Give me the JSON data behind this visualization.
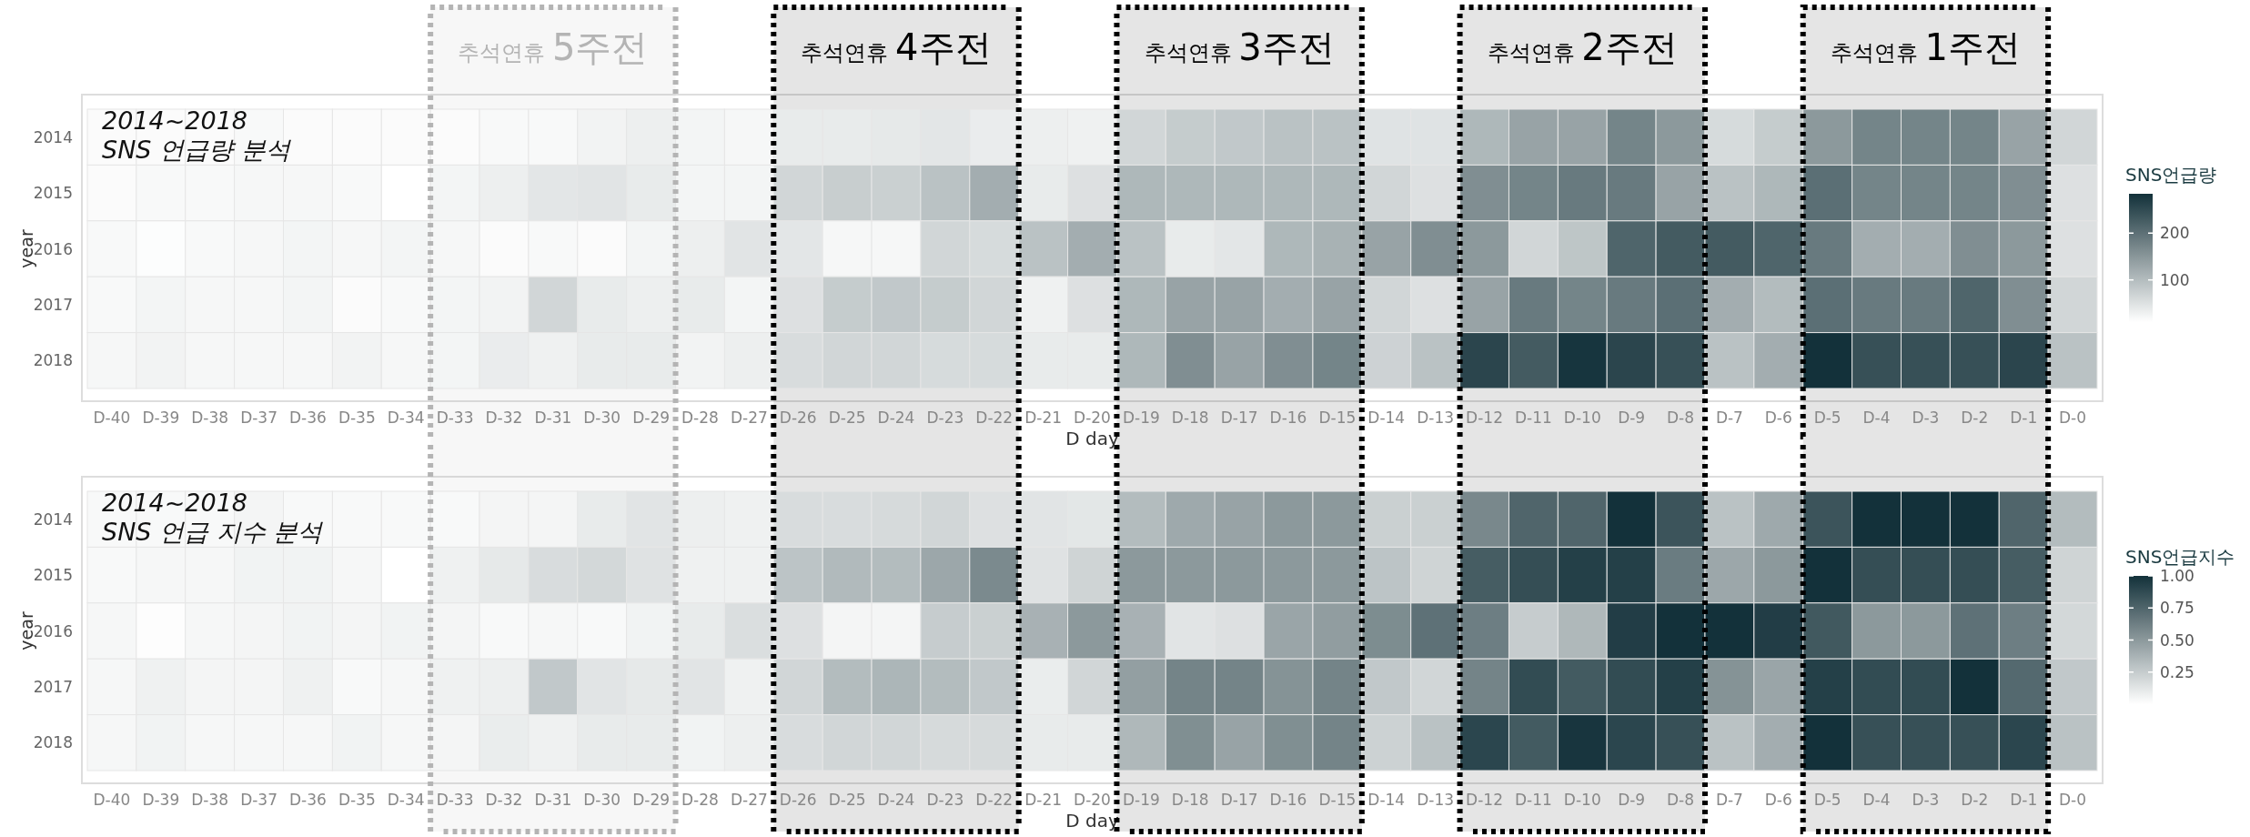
{
  "chart_data": [
    {
      "type": "heatmap",
      "xlabel": "D day",
      "ylabel": "year",
      "clabel": "SNS언급량",
      "annotations": [
        "2014~2018\nSNS 언급량 분석"
      ],
      "categories": [
        "D-40",
        "D-39",
        "D-38",
        "D-37",
        "D-36",
        "D-35",
        "D-34",
        "D-33",
        "D-32",
        "D-31",
        "D-30",
        "D-29",
        "D-28",
        "D-27",
        "D-26",
        "D-25",
        "D-24",
        "D-23",
        "D-22",
        "D-21",
        "D-20",
        "D-19",
        "D-18",
        "D-17",
        "D-16",
        "D-15",
        "D-14",
        "D-13",
        "D-12",
        "D-11",
        "D-10",
        "D-9",
        "D-8",
        "D-7",
        "D-6",
        "D-5",
        "D-4",
        "D-3",
        "D-2",
        "D-1",
        "D-0"
      ],
      "y_categories": [
        "2014",
        "2015",
        "2016",
        "2017",
        "2018"
      ],
      "cells": [
        [
          15,
          15,
          15,
          18,
          15,
          15,
          15,
          15,
          18,
          18,
          26,
          32,
          24,
          21,
          37,
          37,
          40,
          43,
          35,
          32,
          29,
          65,
          79,
          84,
          92,
          92,
          48,
          48,
          106,
          133,
          133,
          174,
          147,
          59,
          79,
          147,
          174,
          174,
          174,
          133,
          65
        ],
        [
          15,
          18,
          18,
          21,
          21,
          18,
          10,
          24,
          32,
          43,
          46,
          37,
          24,
          24,
          65,
          76,
          73,
          92,
          120,
          37,
          51,
          106,
          106,
          106,
          106,
          106,
          65,
          51,
          161,
          174,
          188,
          188,
          133,
          92,
          106,
          202,
          174,
          174,
          174,
          161,
          51
        ],
        [
          18,
          13,
          18,
          21,
          24,
          21,
          24,
          21,
          15,
          18,
          15,
          24,
          32,
          46,
          43,
          21,
          21,
          65,
          59,
          92,
          120,
          92,
          37,
          43,
          106,
          114,
          133,
          161,
          147,
          65,
          87,
          216,
          229,
          229,
          216,
          188,
          120,
          120,
          161,
          147,
          51
        ],
        [
          18,
          24,
          21,
          21,
          24,
          15,
          18,
          24,
          26,
          65,
          37,
          32,
          37,
          24,
          51,
          79,
          84,
          79,
          65,
          29,
          51,
          106,
          133,
          133,
          120,
          133,
          65,
          51,
          133,
          188,
          174,
          188,
          202,
          120,
          100,
          202,
          188,
          188,
          216,
          161,
          65
        ],
        [
          21,
          26,
          21,
          21,
          21,
          26,
          21,
          24,
          35,
          29,
          37,
          37,
          26,
          32,
          57,
          65,
          65,
          59,
          59,
          37,
          37,
          106,
          161,
          133,
          161,
          174,
          70,
          92,
          257,
          229,
          279,
          257,
          243,
          92,
          120,
          284,
          243,
          243,
          243,
          257,
          92
        ]
      ],
      "clim": [
        10,
        284
      ],
      "cticks": [
        100,
        200
      ],
      "bands": [
        {
          "axis": "x",
          "from": "D-33",
          "to": "D-29",
          "label": "추석연휴 5주전",
          "color": "#b4b4b4"
        },
        {
          "axis": "x",
          "from": "D-26",
          "to": "D-22",
          "label": "추석연휴 4주전",
          "color": "#000000"
        },
        {
          "axis": "x",
          "from": "D-19",
          "to": "D-15",
          "label": "추석연휴 3주전",
          "color": "#000000"
        },
        {
          "axis": "x",
          "from": "D-12",
          "to": "D-8",
          "label": "추석연휴 2주전",
          "color": "#000000"
        },
        {
          "axis": "x",
          "from": "D-5",
          "to": "D-1",
          "label": "추석연휴 1주전",
          "color": "#000000"
        }
      ]
    },
    {
      "type": "heatmap",
      "xlabel": "D day",
      "ylabel": "year",
      "clabel": "SNS언급지수",
      "annotations": [
        "2014~2018\nSNS 언급 지수 분석"
      ],
      "categories": [
        "D-40",
        "D-39",
        "D-38",
        "D-37",
        "D-36",
        "D-35",
        "D-34",
        "D-33",
        "D-32",
        "D-31",
        "D-30",
        "D-29",
        "D-28",
        "D-27",
        "D-26",
        "D-25",
        "D-24",
        "D-23",
        "D-22",
        "D-21",
        "D-20",
        "D-19",
        "D-18",
        "D-17",
        "D-16",
        "D-15",
        "D-14",
        "D-13",
        "D-12",
        "D-11",
        "D-10",
        "D-9",
        "D-8",
        "D-7",
        "D-6",
        "D-5",
        "D-4",
        "D-3",
        "D-2",
        "D-1",
        "D-0"
      ],
      "y_categories": [
        "2014",
        "2015",
        "2016",
        "2017",
        "2018"
      ],
      "cells": [
        [
          0.03,
          0.03,
          0.03,
          0.05,
          0.03,
          0.03,
          0.03,
          0.03,
          0.05,
          0.05,
          0.1,
          0.13,
          0.08,
          0.07,
          0.17,
          0.17,
          0.18,
          0.2,
          0.15,
          0.13,
          0.12,
          0.33,
          0.42,
          0.45,
          0.5,
          0.5,
          0.23,
          0.23,
          0.58,
          0.75,
          0.75,
          1.0,
          0.83,
          0.3,
          0.42,
          0.83,
          1.0,
          1.0,
          1.0,
          0.75,
          0.33
        ],
        [
          0.03,
          0.04,
          0.04,
          0.06,
          0.06,
          0.04,
          0.0,
          0.07,
          0.11,
          0.17,
          0.19,
          0.14,
          0.07,
          0.07,
          0.29,
          0.34,
          0.33,
          0.43,
          0.57,
          0.14,
          0.21,
          0.5,
          0.5,
          0.5,
          0.5,
          0.5,
          0.29,
          0.21,
          0.79,
          0.86,
          0.93,
          0.93,
          0.64,
          0.43,
          0.5,
          1.0,
          0.86,
          0.86,
          0.86,
          0.79,
          0.21
        ],
        [
          0.04,
          0.01,
          0.04,
          0.05,
          0.06,
          0.05,
          0.06,
          0.05,
          0.03,
          0.04,
          0.03,
          0.06,
          0.1,
          0.16,
          0.15,
          0.05,
          0.05,
          0.25,
          0.23,
          0.38,
          0.5,
          0.38,
          0.13,
          0.15,
          0.44,
          0.48,
          0.56,
          0.69,
          0.63,
          0.25,
          0.35,
          0.94,
          1.0,
          1.0,
          0.94,
          0.81,
          0.5,
          0.5,
          0.69,
          0.63,
          0.19
        ],
        [
          0.04,
          0.07,
          0.05,
          0.05,
          0.07,
          0.03,
          0.04,
          0.07,
          0.08,
          0.27,
          0.13,
          0.11,
          0.13,
          0.07,
          0.2,
          0.33,
          0.36,
          0.33,
          0.27,
          0.09,
          0.2,
          0.47,
          0.6,
          0.6,
          0.53,
          0.6,
          0.27,
          0.2,
          0.6,
          0.87,
          0.8,
          0.87,
          0.93,
          0.53,
          0.44,
          0.93,
          0.87,
          0.87,
          1.0,
          0.73,
          0.27
        ],
        [
          0.04,
          0.06,
          0.04,
          0.04,
          0.04,
          0.06,
          0.04,
          0.05,
          0.09,
          0.07,
          0.1,
          0.1,
          0.06,
          0.08,
          0.17,
          0.2,
          0.2,
          0.18,
          0.18,
          0.1,
          0.1,
          0.35,
          0.55,
          0.45,
          0.55,
          0.6,
          0.22,
          0.3,
          0.9,
          0.8,
          0.98,
          0.9,
          0.85,
          0.3,
          0.4,
          1.0,
          0.85,
          0.85,
          0.85,
          0.9,
          0.3
        ]
      ],
      "clim": [
        0,
        1
      ],
      "cticks": [
        {
          "value": 0.25,
          "label": "0.25"
        },
        {
          "value": 0.5,
          "label": "0.50"
        },
        {
          "value": 0.75,
          "label": "0.75"
        },
        {
          "value": 1,
          "label": "1.00"
        }
      ],
      "bands": [
        {
          "axis": "x",
          "from": "D-33",
          "to": "D-29",
          "color": "#b4b4b4"
        },
        {
          "axis": "x",
          "from": "D-26",
          "to": "D-22",
          "color": "#000000"
        },
        {
          "axis": "x",
          "from": "D-19",
          "to": "D-15",
          "color": "#000000"
        },
        {
          "axis": "x",
          "from": "D-12",
          "to": "D-8",
          "color": "#000000"
        },
        {
          "axis": "x",
          "from": "D-5",
          "to": "D-1",
          "color": "#000000"
        }
      ]
    }
  ]
}
